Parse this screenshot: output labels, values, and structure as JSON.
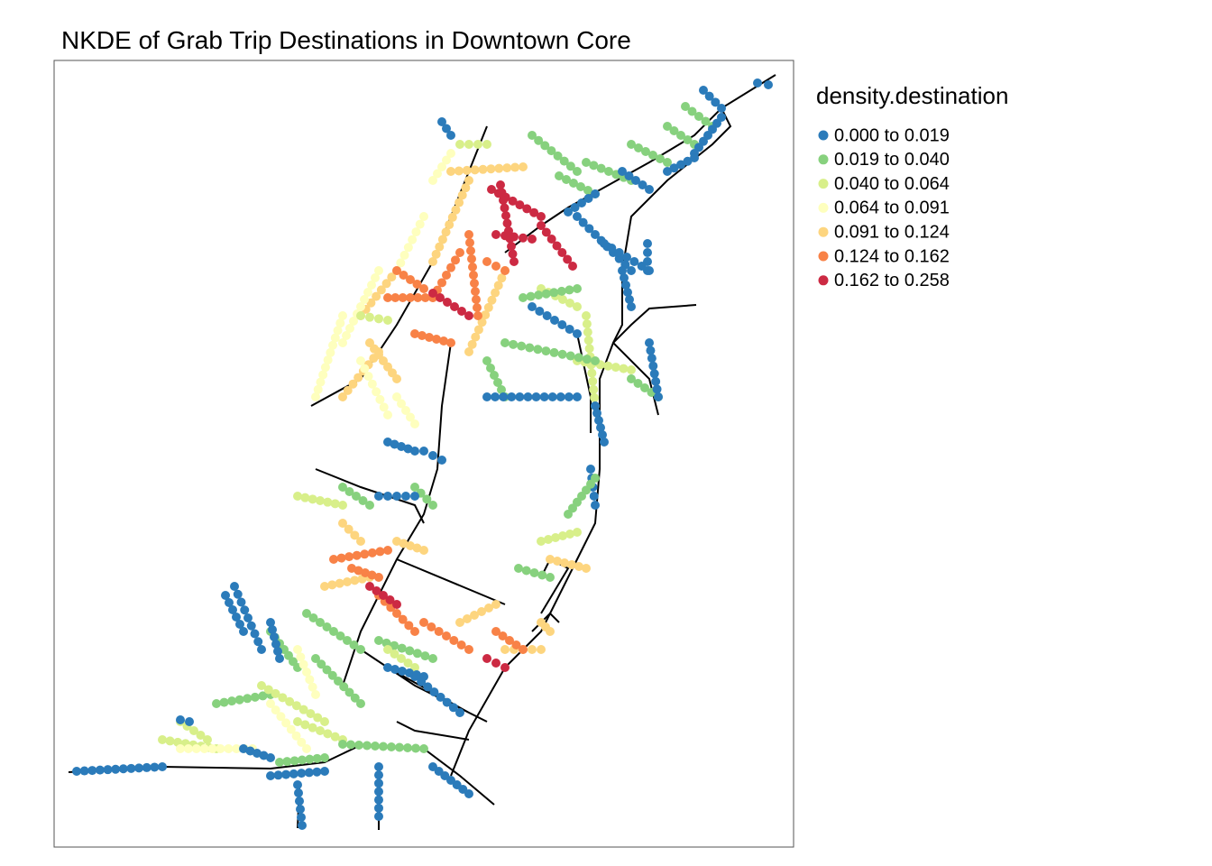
{
  "title": "NKDE of Grab Trip Destinations in Downtown Core",
  "legend": {
    "title": "density.destination",
    "items": [
      {
        "label": "0.000 to 0.019",
        "color": "#2b7bba"
      },
      {
        "label": "0.019 to 0.040",
        "color": "#87d17e"
      },
      {
        "label": "0.040 to 0.064",
        "color": "#d8ef8a"
      },
      {
        "label": "0.064 to 0.091",
        "color": "#feffbe"
      },
      {
        "label": "0.091 to 0.124",
        "color": "#fdd57f"
      },
      {
        "label": "0.124 to 0.162",
        "color": "#f88247"
      },
      {
        "label": "0.162 to 0.258",
        "color": "#cc2a43"
      }
    ]
  }
}
